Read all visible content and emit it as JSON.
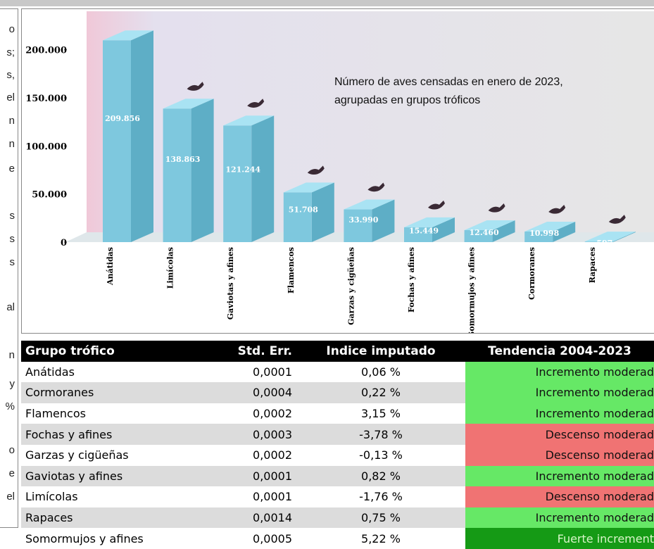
{
  "side_text": [
    "o",
    "s;",
    "s,",
    "el",
    "n",
    "n",
    "e",
    "s",
    "s",
    "s",
    "al",
    "n",
    "y",
    "%",
    "o",
    "e",
    "el"
  ],
  "chart_data": {
    "type": "bar",
    "annotation": "Número  de aves censadas en enero de 2023, agrupadas en grupos tróficos",
    "categories": [
      "Anátidas",
      "Limícolas",
      "Gaviotas y afines",
      "Flamencos",
      "Garzas y cigüeñas",
      "Fochas y afines",
      "Somormujos y afines",
      "Cormoranes",
      "Rapaces"
    ],
    "values": [
      209856,
      138863,
      121244,
      51708,
      33990,
      15449,
      12460,
      10998,
      597
    ],
    "value_labels": [
      "209.856",
      "138.863",
      "121.244",
      "51.708",
      "33.990",
      "15.449",
      "12.460",
      "10.998",
      "597"
    ],
    "color": "#7ec8de",
    "ylim": [
      0,
      240000
    ],
    "yticks": [
      0,
      {
        "value": 50000,
        "label": "50.000"
      },
      {
        "value": 100000,
        "label": "100.000"
      },
      {
        "value": 150000,
        "label": "150.000"
      },
      {
        "value": 200000,
        "label": "200.000"
      }
    ]
  },
  "table": {
    "header": [
      "Grupo trófico",
      "Std. Err.",
      "Indice imputado",
      "Tendencia 2004-2023"
    ],
    "rows": [
      [
        "Anátidas",
        "0,0001",
        "0,06 %",
        "Incremento moderad"
      ],
      [
        "Cormoranes",
        "0,0004",
        "0,22 %",
        "Incremento moderad"
      ],
      [
        "Flamencos",
        "0,0002",
        "3,15 %",
        "Incremento moderad"
      ],
      [
        "Fochas y afines",
        "0,0003",
        "-3,78 %",
        "Descenso moderad"
      ],
      [
        "Garzas y cigüeñas",
        "0,0002",
        "-0,13 %",
        "Descenso moderad"
      ],
      [
        "Gaviotas y afines",
        "0,0001",
        "0,82 %",
        "Incremento moderad"
      ],
      [
        "Limícolas",
        "0,0001",
        "-1,76 %",
        "Descenso moderad"
      ],
      [
        "Rapaces",
        "0,0014",
        "0,75 %",
        "Incremento moderad"
      ],
      [
        "Somormujos y afines",
        "0,0005",
        "5,22 %",
        "Fuerte increment"
      ]
    ],
    "trend_colors": [
      "#66e866",
      "#66e866",
      "#66e866",
      "#f07373",
      "#f07373",
      "#66e866",
      "#f07373",
      "#66e866",
      "#159a15"
    ]
  }
}
